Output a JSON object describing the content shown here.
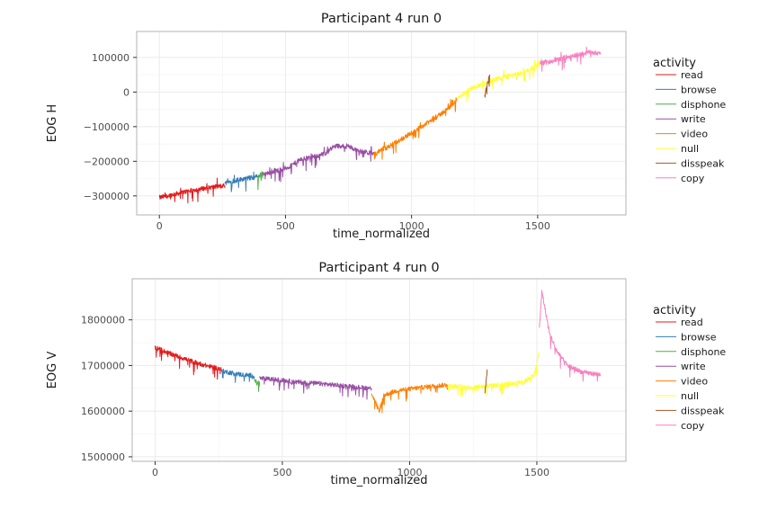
{
  "colors": {
    "read": "#e41a1c",
    "browse": "#377eb8",
    "disphone": "#4daf4a",
    "write": "#984ea3",
    "video": "#ff7f00",
    "null": "#ffff33",
    "disspeak": "#a65628",
    "copy": "#f781bf",
    "panel_border": "#b3b3b3",
    "grid": "#ebebeb"
  },
  "legend": {
    "title": "activity",
    "entries": [
      "read",
      "browse",
      "disphone",
      "write",
      "video",
      "null",
      "disspeak",
      "copy"
    ]
  },
  "chart_data": [
    {
      "type": "line",
      "title": "Participant 4 run 0",
      "xlabel": "time_normalized",
      "ylabel": "EOG H",
      "xlim": [
        -90,
        1850
      ],
      "ylim": [
        -355000,
        175000
      ],
      "xticks": [
        0,
        500,
        1000,
        1500
      ],
      "xtick_labels": [
        "0",
        "500",
        "1000",
        "1500"
      ],
      "yticks": [
        100000,
        0,
        -100000,
        -200000,
        -300000
      ],
      "ytick_labels": [
        "100000",
        "0",
        "−100000",
        "−200000",
        "−300000"
      ],
      "grid": true,
      "legend_position": "right",
      "series": [
        {
          "name": "read",
          "x": [
            0,
            60,
            120,
            180,
            260
          ],
          "y": [
            -305000,
            -295000,
            -285000,
            -278000,
            -270000
          ]
        },
        {
          "name": "browse",
          "x": [
            260,
            300,
            340,
            380,
            390
          ],
          "y": [
            -262000,
            -255000,
            -250000,
            -246000,
            -243000
          ]
        },
        {
          "name": "disphone",
          "x": [
            390,
            400,
            410
          ],
          "y": [
            -248000,
            -238000,
            -235000
          ]
        },
        {
          "name": "write",
          "x": [
            410,
            460,
            510,
            560,
            600,
            650,
            700,
            750,
            800,
            850
          ],
          "y": [
            -238000,
            -228000,
            -218000,
            -195000,
            -188000,
            -180000,
            -155000,
            -158000,
            -172000,
            -178000
          ]
        },
        {
          "name": "video",
          "x": [
            850,
            900,
            950,
            1000,
            1050,
            1100,
            1150,
            1180
          ],
          "y": [
            -180000,
            -162000,
            -140000,
            -118000,
            -95000,
            -72000,
            -45000,
            -20000
          ]
        },
        {
          "name": "null",
          "x": [
            1180,
            1220,
            1260,
            1290,
            1320,
            1380,
            1440,
            1480,
            1510
          ],
          "y": [
            -20000,
            5000,
            18000,
            25000,
            35000,
            45000,
            55000,
            70000,
            80000
          ]
        },
        {
          "name": "disspeak",
          "x": [
            1290,
            1300,
            1310
          ],
          "y": [
            -10000,
            20000,
            50000
          ]
        },
        {
          "name": "copy",
          "x": [
            1510,
            1560,
            1610,
            1660,
            1710,
            1750
          ],
          "y": [
            82000,
            90000,
            100000,
            108000,
            115000,
            112000
          ]
        }
      ]
    },
    {
      "type": "line",
      "title": "Participant 4 run 0",
      "xlabel": "time_normalized",
      "ylabel": "EOG V",
      "xlim": [
        -90,
        1850
      ],
      "ylim": [
        1490000,
        1890000
      ],
      "xticks": [
        0,
        500,
        1000,
        1500
      ],
      "xtick_labels": [
        "0",
        "500",
        "1000",
        "1500"
      ],
      "yticks": [
        1800000,
        1700000,
        1600000,
        1500000
      ],
      "ytick_labels": [
        "1800000",
        "1700000",
        "1600000",
        "1500000"
      ],
      "grid": true,
      "legend_position": "right",
      "series": [
        {
          "name": "read",
          "x": [
            0,
            50,
            100,
            150,
            200,
            260
          ],
          "y": [
            1740000,
            1728000,
            1718000,
            1708000,
            1700000,
            1692000
          ]
        },
        {
          "name": "browse",
          "x": [
            260,
            300,
            340,
            380,
            390
          ],
          "y": [
            1688000,
            1684000,
            1680000,
            1678000,
            1676000
          ]
        },
        {
          "name": "disphone",
          "x": [
            390,
            400,
            410
          ],
          "y": [
            1670000,
            1660000,
            1665000
          ]
        },
        {
          "name": "write",
          "x": [
            410,
            500,
            550,
            650,
            750,
            850
          ],
          "y": [
            1672000,
            1668000,
            1664000,
            1660000,
            1655000,
            1650000
          ]
        },
        {
          "name": "video",
          "x": [
            850,
            880,
            900,
            950,
            1050,
            1150
          ],
          "y": [
            1640000,
            1600000,
            1635000,
            1645000,
            1652000,
            1658000
          ]
        },
        {
          "name": "null",
          "x": [
            1150,
            1250,
            1300,
            1400,
            1450,
            1490,
            1510
          ],
          "y": [
            1655000,
            1652000,
            1655000,
            1660000,
            1665000,
            1680000,
            1730000
          ]
        },
        {
          "name": "disspeak",
          "x": [
            1295,
            1300,
            1305
          ],
          "y": [
            1640000,
            1660000,
            1690000
          ]
        },
        {
          "name": "copy",
          "x": [
            1510,
            1520,
            1530,
            1550,
            1580,
            1620,
            1680,
            1750
          ],
          "y": [
            1780000,
            1865000,
            1830000,
            1770000,
            1730000,
            1700000,
            1685000,
            1680000
          ]
        }
      ]
    }
  ]
}
